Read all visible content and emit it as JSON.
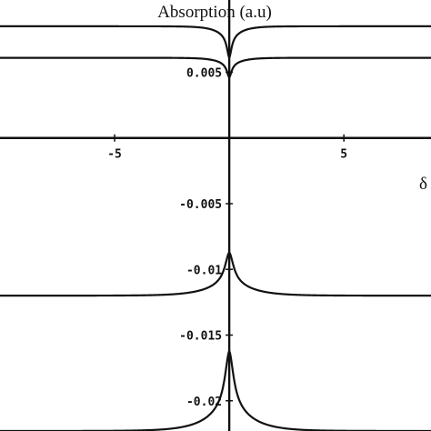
{
  "chart_data": {
    "type": "line",
    "title": "",
    "ylabel": "Absorption (a.u)",
    "xlabel": "δ",
    "xlim": [
      -10,
      8.8
    ],
    "ylim": [
      -0.0223,
      0.0105
    ],
    "x_ticks": [
      {
        "value": -5,
        "label": "-5"
      },
      {
        "value": 5,
        "label": "5"
      }
    ],
    "y_ticks": [
      {
        "value": 0.005,
        "label": "0.005"
      },
      {
        "value": -0.005,
        "label": "-0.005"
      },
      {
        "value": -0.01,
        "label": "-0.01"
      },
      {
        "value": -0.015,
        "label": "-0.015"
      },
      {
        "value": -0.02,
        "label": "-0.02"
      }
    ],
    "grid": false,
    "legend": "none",
    "series": [
      {
        "baseline": 0.0085,
        "peak": 0.0061,
        "width": 0.12
      },
      {
        "baseline": 0.0061,
        "peak": 0.0046,
        "width": 0.12
      },
      {
        "baseline": -0.012,
        "peak": -0.0087,
        "width": 0.22
      },
      {
        "baseline": -0.0223,
        "peak": -0.0162,
        "width": 0.22
      }
    ]
  }
}
